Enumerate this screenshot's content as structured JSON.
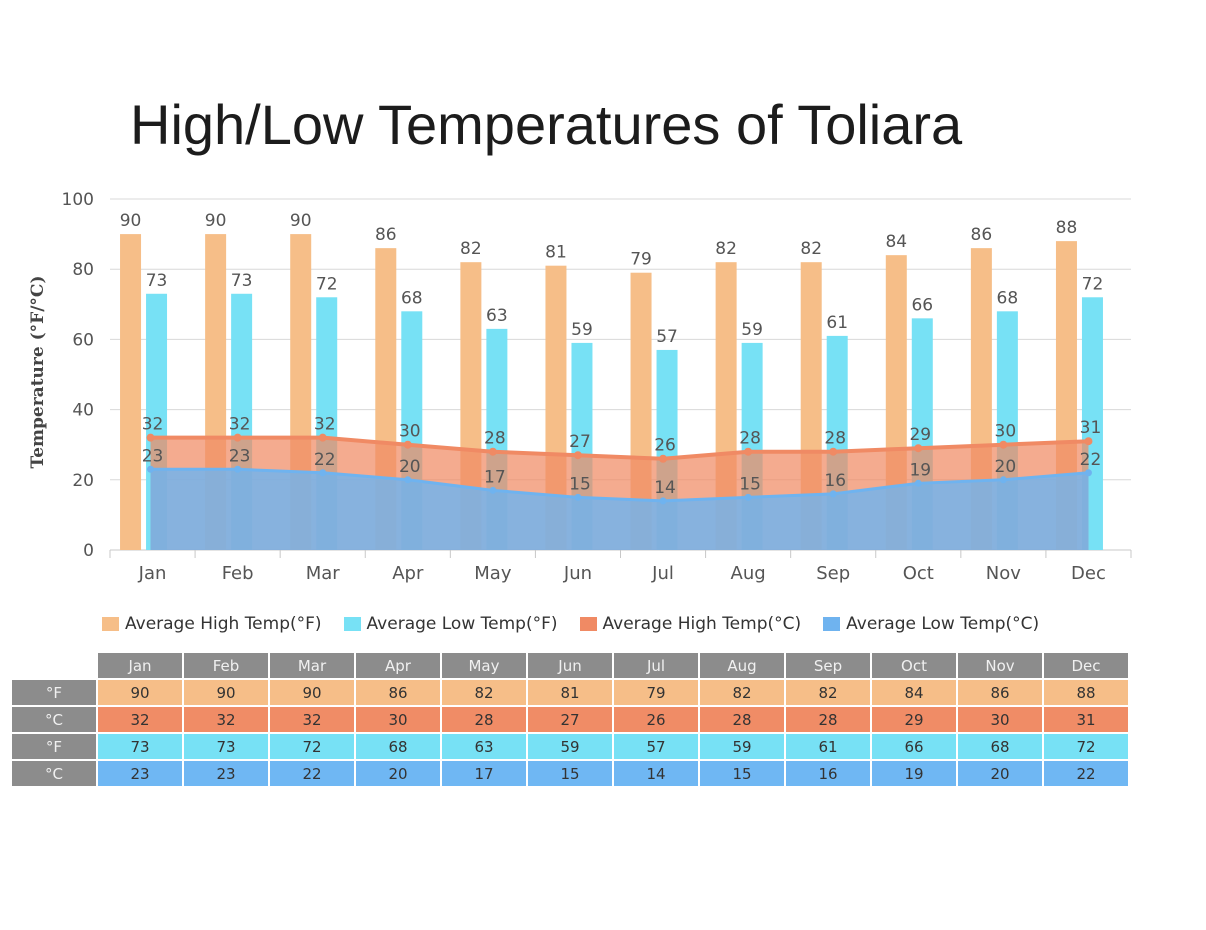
{
  "page": {
    "title": "High/Low Temperatures of Toliara"
  },
  "colors": {
    "high_f": "#f6be88",
    "low_f": "#77e1f5",
    "high_c": "#f08a64",
    "low_c": "#6fb3ef",
    "grid": "#d8d8d8",
    "table_header": "#8c8c8c"
  },
  "chart_data": {
    "type": "bar",
    "title": "High/Low Temperatures of Toliara",
    "ylabel": "Temperature (°F/°C)",
    "xlabel": "",
    "ylim": [
      0,
      100
    ],
    "yticks": [
      "0",
      "20",
      "40",
      "60",
      "80",
      "100"
    ],
    "grid": true,
    "categories": [
      "Jan",
      "Feb",
      "Mar",
      "Apr",
      "May",
      "Jun",
      "Jul",
      "Aug",
      "Sep",
      "Oct",
      "Nov",
      "Dec"
    ],
    "series": [
      {
        "name": "Average High Temp(°F)",
        "kind": "bar",
        "values": [
          90,
          90,
          90,
          86,
          82,
          81,
          79,
          82,
          82,
          84,
          86,
          88
        ]
      },
      {
        "name": "Average Low Temp(°F)",
        "kind": "bar",
        "values": [
          73,
          73,
          72,
          68,
          63,
          59,
          57,
          59,
          61,
          66,
          68,
          72
        ]
      },
      {
        "name": "Average High Temp(°C)",
        "kind": "area",
        "values": [
          32,
          32,
          32,
          30,
          28,
          27,
          26,
          28,
          28,
          29,
          30,
          31
        ]
      },
      {
        "name": "Average Low Temp(°C)",
        "kind": "area",
        "values": [
          23,
          23,
          22,
          20,
          17,
          15,
          14,
          15,
          16,
          19,
          20,
          22
        ]
      }
    ],
    "legend_position": "bottom"
  },
  "table": {
    "months": [
      "Jan",
      "Feb",
      "Mar",
      "Apr",
      "May",
      "Jun",
      "Jul",
      "Aug",
      "Sep",
      "Oct",
      "Nov",
      "Dec"
    ],
    "rows": [
      {
        "unit": "°F",
        "values": [
          "90",
          "90",
          "90",
          "86",
          "82",
          "81",
          "79",
          "82",
          "82",
          "84",
          "86",
          "88"
        ]
      },
      {
        "unit": "°C",
        "values": [
          "32",
          "32",
          "32",
          "30",
          "28",
          "27",
          "26",
          "28",
          "28",
          "29",
          "30",
          "31"
        ]
      },
      {
        "unit": "°F",
        "values": [
          "73",
          "73",
          "72",
          "68",
          "63",
          "59",
          "57",
          "59",
          "61",
          "66",
          "68",
          "72"
        ]
      },
      {
        "unit": "°C",
        "values": [
          "23",
          "23",
          "22",
          "20",
          "17",
          "15",
          "14",
          "15",
          "16",
          "19",
          "20",
          "22"
        ]
      }
    ]
  }
}
